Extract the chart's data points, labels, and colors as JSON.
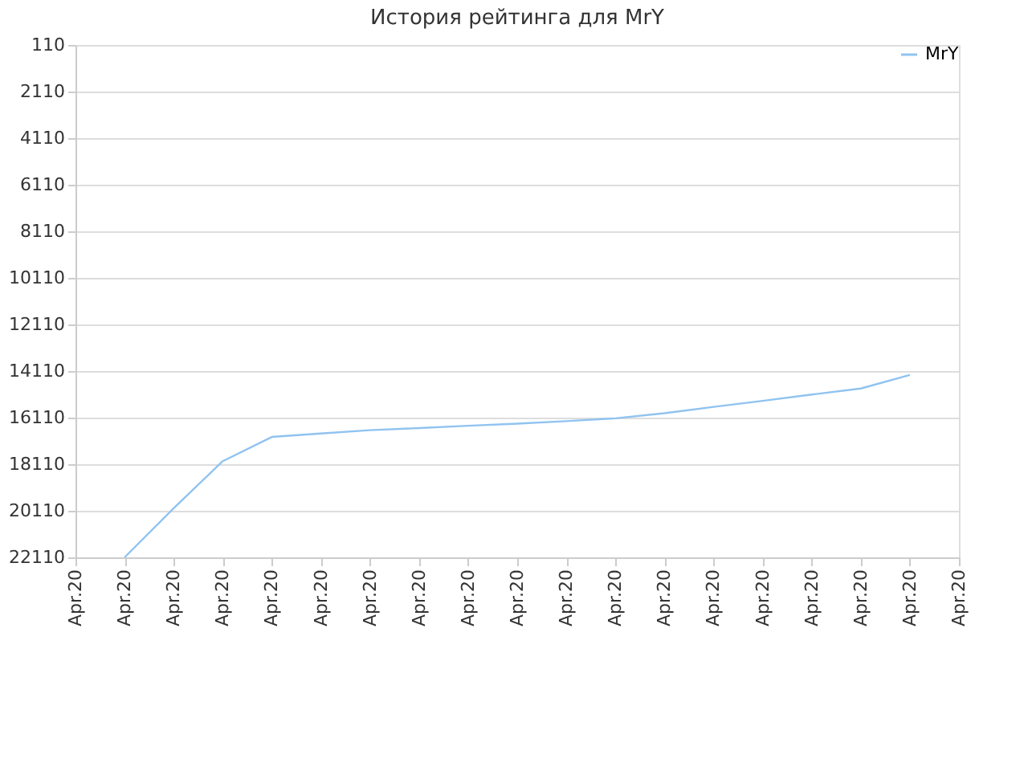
{
  "chart_data": {
    "type": "line",
    "title": "История рейтинга для MrY",
    "categories": [
      "Apr.20",
      "Apr.20",
      "Apr.20",
      "Apr.20",
      "Apr.20",
      "Apr.20",
      "Apr.20",
      "Apr.20",
      "Apr.20",
      "Apr.20",
      "Apr.20",
      "Apr.20",
      "Apr.20",
      "Apr.20",
      "Apr.20",
      "Apr.20",
      "Apr.20",
      "Apr.20",
      "Apr.20"
    ],
    "series": [
      {
        "name": "MrY",
        "color": "#90c3f0",
        "values": [
          null,
          22110,
          20000,
          17980,
          16940,
          16790,
          16650,
          16560,
          16460,
          16370,
          16260,
          16140,
          15920,
          15650,
          15390,
          15120,
          14860,
          14280,
          null
        ]
      }
    ],
    "ylim": [
      22110,
      110
    ],
    "yticks": [
      110,
      2110,
      4110,
      6110,
      8110,
      10110,
      12110,
      14110,
      16110,
      18110,
      20110,
      22110
    ],
    "grid": "y",
    "legend": "top right",
    "marker": "none",
    "line_style": "solid"
  }
}
